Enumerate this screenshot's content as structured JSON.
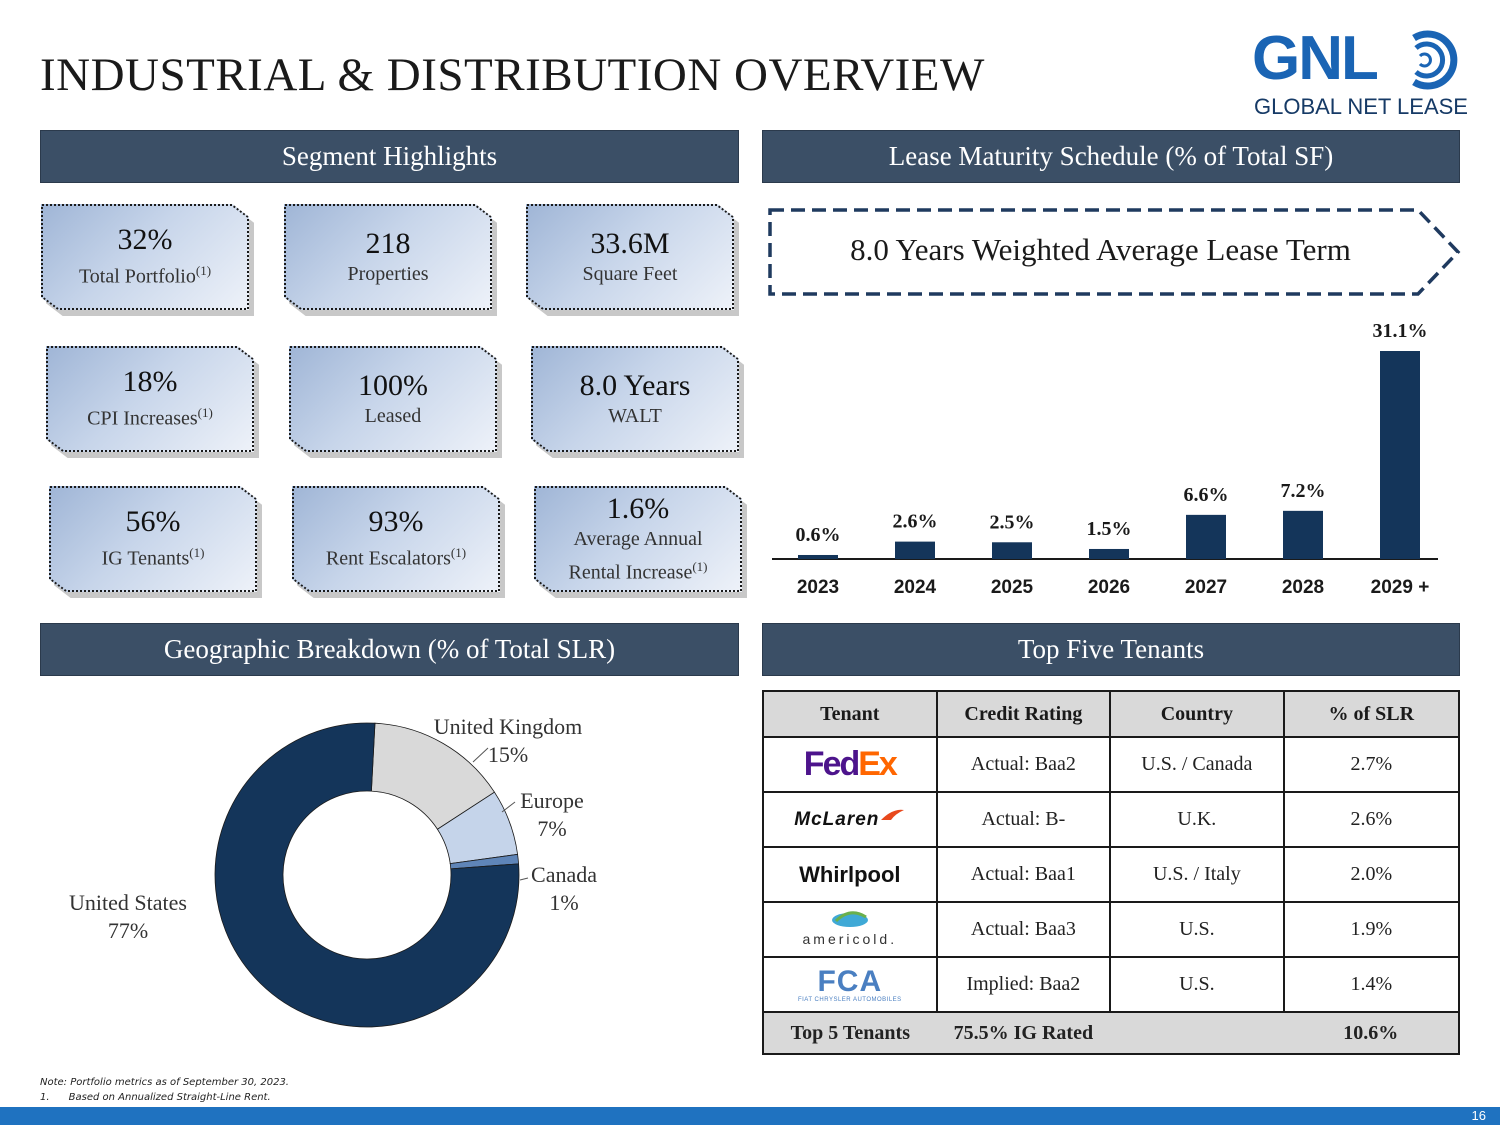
{
  "page": {
    "title": "INDUSTRIAL & DISTRIBUTION OVERVIEW",
    "page_number": "16"
  },
  "logo": {
    "wordmark": "GNL",
    "tagline": "GLOBAL NET LEASE",
    "color": "#1a64b4"
  },
  "sections": {
    "segment_highlights": "Segment Highlights",
    "lease_maturity": "Lease Maturity Schedule (% of Total SF)",
    "geographic": "Geographic Breakdown (% of Total SLR)",
    "top_tenants": "Top Five Tenants"
  },
  "highlights": [
    {
      "value": "32%",
      "label": "Total Portfolio",
      "footnote": "(1)"
    },
    {
      "value": "218",
      "label": "Properties",
      "footnote": ""
    },
    {
      "value": "33.6M",
      "label": "Square Feet",
      "footnote": ""
    },
    {
      "value": "18%",
      "label": "CPI Increases",
      "footnote": "(1)"
    },
    {
      "value": "100%",
      "label": "Leased",
      "footnote": ""
    },
    {
      "value": "8.0 Years",
      "label": "WALT",
      "footnote": ""
    },
    {
      "value": "56%",
      "label": "IG Tenants",
      "footnote": "(1)"
    },
    {
      "value": "93%",
      "label": "Rent Escalators",
      "footnote": "(1)"
    },
    {
      "value": "1.6%",
      "label": "Average Annual",
      "label2": "Rental Increase",
      "footnote": "(1)"
    }
  ],
  "walt_banner": "8.0 Years Weighted Average Lease Term",
  "chart_data": [
    {
      "type": "bar",
      "title": "Lease Maturity Schedule (% of Total SF)",
      "categories": [
        "2023",
        "2024",
        "2025",
        "2026",
        "2027",
        "2028",
        "2029 +"
      ],
      "values": [
        0.6,
        2.6,
        2.5,
        1.5,
        6.6,
        7.2,
        31.1
      ],
      "data_labels": [
        "0.6%",
        "2.6%",
        "2.5%",
        "1.5%",
        "6.6%",
        "7.2%",
        "31.1%"
      ],
      "ylim": [
        0,
        31.1
      ],
      "color": "#14355a"
    },
    {
      "type": "pie",
      "title": "Geographic Breakdown (% of Total SLR)",
      "labels": [
        "United Kingdom",
        "Europe",
        "Canada",
        "United States"
      ],
      "values": [
        15,
        7,
        1,
        77
      ],
      "value_labels": [
        "15%",
        "7%",
        "1%",
        "77%"
      ],
      "colors": [
        "#d9d9d9",
        "#c5d4ea",
        "#5f85b8",
        "#14355a"
      ]
    }
  ],
  "tenants": {
    "headers": [
      "Tenant",
      "Credit Rating",
      "Country",
      "% of SLR"
    ],
    "rows": [
      {
        "tenant": "FedEx",
        "rating": "Actual: Baa2",
        "country": "U.S. / Canada",
        "slr": "2.7%"
      },
      {
        "tenant": "McLaren",
        "rating": "Actual: B-",
        "country": "U.K.",
        "slr": "2.6%"
      },
      {
        "tenant": "Whirlpool",
        "rating": "Actual: Baa1",
        "country": "U.S. / Italy",
        "slr": "2.0%"
      },
      {
        "tenant": "americold",
        "rating": "Actual: Baa3",
        "country": "U.S.",
        "slr": "1.9%"
      },
      {
        "tenant": "FCA",
        "tenant_sub": "FIAT CHRYSLER AUTOMOBILES",
        "rating": "Implied: Baa2",
        "country": "U.S.",
        "slr": "1.4%"
      }
    ],
    "total": {
      "label": "Top 5 Tenants",
      "rating": "75.5% IG Rated",
      "slr": "10.6%"
    }
  },
  "notes": {
    "line1": "Note: Portfolio metrics as of September 30, 2023.",
    "line2_num": "1.",
    "line2": "Based on Annualized Straight-Line Rent."
  }
}
